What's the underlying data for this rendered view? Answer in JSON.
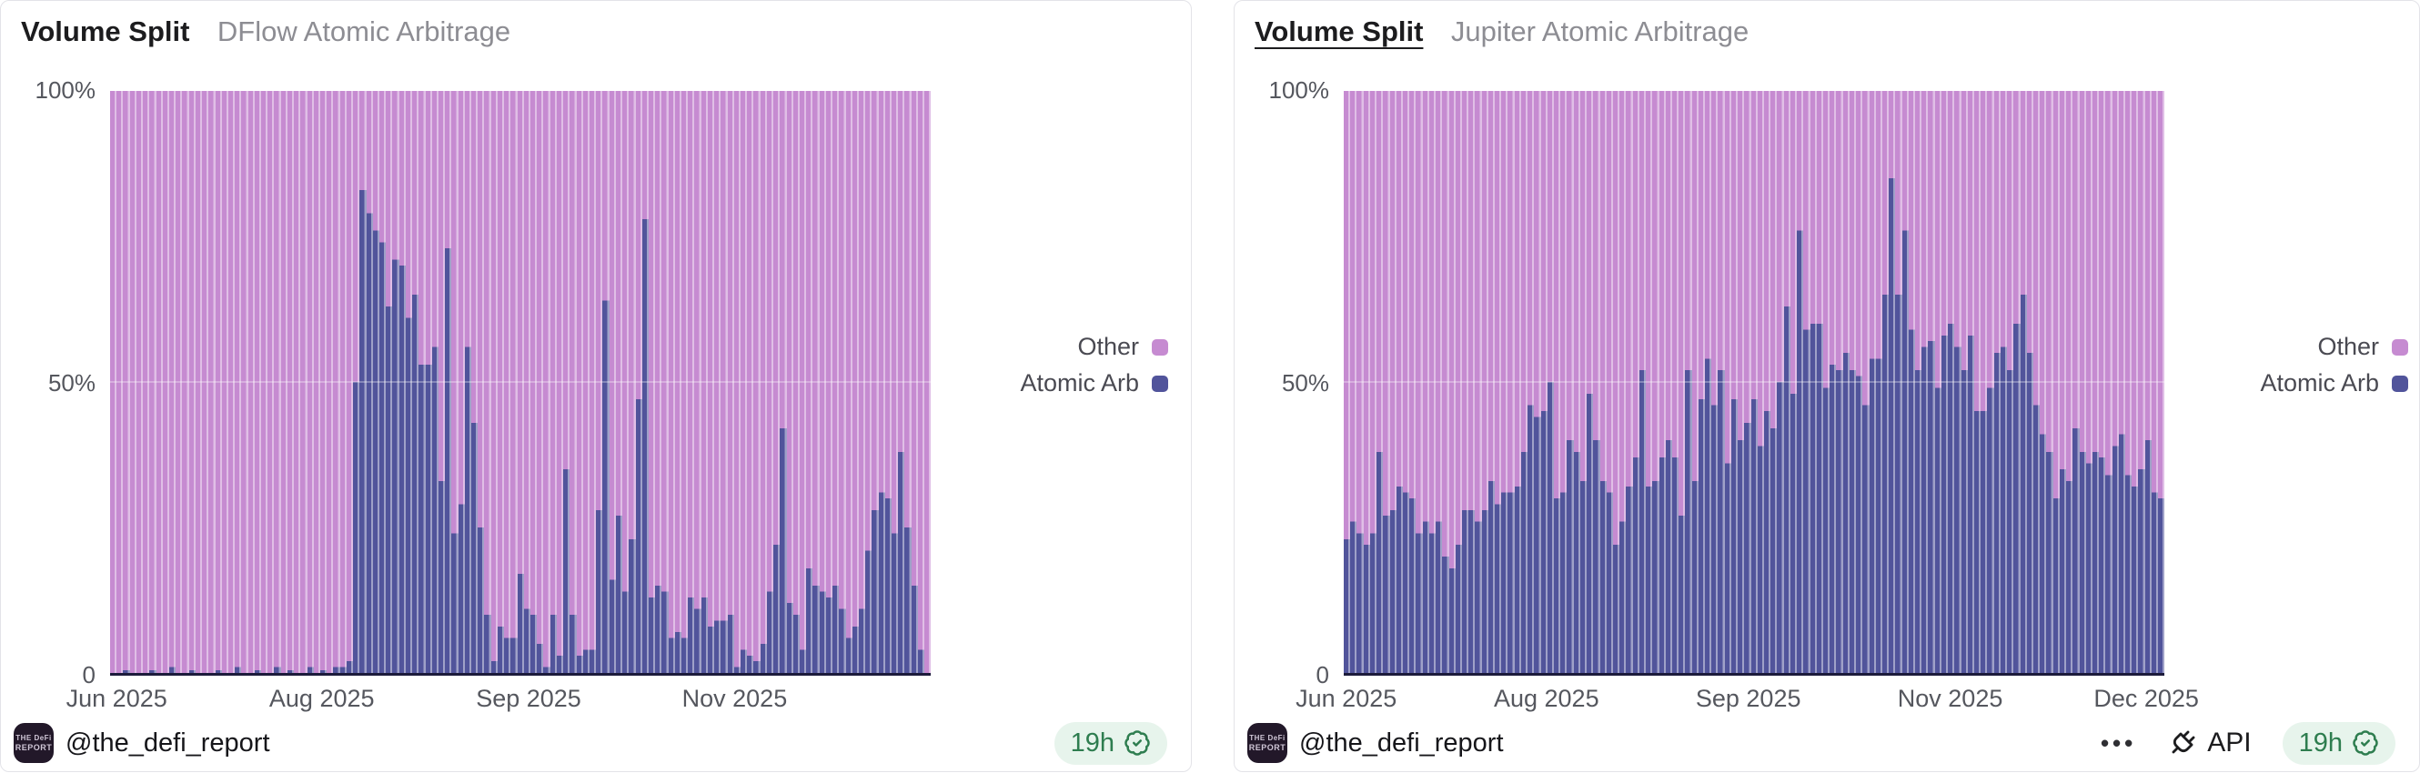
{
  "colors": {
    "other": "#c68bd1",
    "atomic_arb": "#51549b",
    "axis_line": "#1c1b3b",
    "badge_bg": "#e7f4ec",
    "badge_fg": "#2e7d4f",
    "card_border": "#e3e3e8",
    "title_text": "#1c1c1e",
    "subtitle_text": "#8d8d93",
    "axis_label_text": "#55575e"
  },
  "legend": {
    "items": [
      {
        "label": "Other",
        "color_key": "other"
      },
      {
        "label": "Atomic Arb",
        "color_key": "atomic_arb"
      }
    ]
  },
  "footer": {
    "handle": "@the_defi_report",
    "avatar_line1": "THE DeFi",
    "avatar_line2": "REPORT",
    "age_badge": "19h",
    "api_label": "API",
    "menu_dots": "•••"
  },
  "charts": [
    {
      "title": "Volume Split",
      "subtitle": "DFlow Atomic Arbitrage"
    },
    {
      "title": "Volume Split",
      "subtitle": "Jupiter Atomic Arbitrage"
    }
  ],
  "chart_data": [
    {
      "type": "bar",
      "variant": "stacked-percent-column",
      "title": "Volume Split — DFlow Atomic Arbitrage",
      "xlabel": "Date (daily bars, Jun 2025 – Dec 2025)",
      "ylabel": "% of volume",
      "ylim": [
        0,
        100
      ],
      "grid": "50% line only (faint)",
      "legend_position": "right-middle",
      "y_ticks": [
        "0",
        "50%",
        "100%"
      ],
      "x_ticks": [
        {
          "label": "Jun 2025",
          "pos": 0.008
        },
        {
          "label": "Aug 2025",
          "pos": 0.258
        },
        {
          "label": "Sep 2025",
          "pos": 0.51
        },
        {
          "label": "Nov 2025",
          "pos": 0.761
        }
      ],
      "stack_total": 100,
      "series": [
        {
          "name": "Atomic Arb",
          "color": "#51549b",
          "values": [
            0,
            0,
            0.5,
            0,
            0,
            0,
            0.5,
            0,
            0,
            1,
            0,
            0,
            0.5,
            0,
            0,
            0,
            0.5,
            0,
            0,
            1,
            0,
            0,
            0.5,
            0,
            0,
            1,
            0,
            0.5,
            0,
            0,
            1,
            0,
            0.5,
            0,
            1,
            1,
            2,
            50,
            83,
            79,
            76,
            74,
            63,
            71,
            70,
            61,
            65,
            53,
            53,
            56,
            33,
            73,
            24,
            29,
            56,
            43,
            25,
            10,
            2,
            8,
            6,
            6,
            17,
            11,
            10,
            5,
            1,
            10,
            3,
            35,
            10,
            3,
            4,
            4,
            28,
            64,
            16,
            27,
            14,
            23,
            47,
            78,
            13,
            15,
            14,
            6,
            7,
            6,
            13,
            11,
            13,
            8,
            9,
            9,
            10,
            1,
            4,
            3,
            2,
            5,
            14,
            22,
            42,
            12,
            10,
            4,
            18,
            15,
            14,
            13,
            15,
            11,
            6,
            8,
            11,
            21,
            28,
            31,
            30,
            24,
            38,
            25,
            15,
            4,
            0
          ]
        },
        {
          "name": "Other",
          "color": "#c68bd1",
          "values": "complement — each bar is 100 minus the Atomic Arb value"
        }
      ]
    },
    {
      "type": "bar",
      "variant": "stacked-percent-column",
      "title": "Volume Split — Jupiter Atomic Arbitrage",
      "xlabel": "Date (daily bars, Jun 2025 – Dec 2025)",
      "ylabel": "% of volume",
      "ylim": [
        0,
        100
      ],
      "grid": "50% line only (faint)",
      "legend_position": "right-middle",
      "y_ticks": [
        "0",
        "50%",
        "100%"
      ],
      "x_ticks": [
        {
          "label": "Jun 2025",
          "pos": 0.003
        },
        {
          "label": "Aug 2025",
          "pos": 0.247
        },
        {
          "label": "Sep 2025",
          "pos": 0.493
        },
        {
          "label": "Nov 2025",
          "pos": 0.739
        },
        {
          "label": "Dec 2025",
          "pos": 0.978
        }
      ],
      "stack_total": 100,
      "series": [
        {
          "name": "Atomic Arb",
          "color": "#51549b",
          "values": [
            23,
            26,
            24,
            22,
            24,
            38,
            27,
            28,
            32,
            31,
            30,
            24,
            26,
            24,
            26,
            20,
            18,
            22,
            28,
            28,
            26,
            28,
            33,
            29,
            31,
            31,
            32,
            38,
            46,
            44,
            45,
            50,
            30,
            31,
            40,
            38,
            33,
            48,
            40,
            33,
            31,
            22,
            26,
            32,
            37,
            52,
            32,
            33,
            37,
            40,
            37,
            27,
            52,
            33,
            47,
            54,
            46,
            52,
            36,
            47,
            40,
            43,
            47,
            39,
            45,
            42,
            50,
            63,
            48,
            76,
            59,
            60,
            60,
            49,
            53,
            52,
            55,
            52,
            51,
            46,
            54,
            54,
            65,
            85,
            65,
            76,
            59,
            52,
            56,
            57,
            49,
            58,
            60,
            56,
            52,
            58,
            45,
            45,
            49,
            55,
            56,
            52,
            60,
            65,
            55,
            46,
            41,
            38,
            30,
            35,
            33,
            42,
            38,
            36,
            38,
            37,
            34,
            39,
            41,
            34,
            32,
            35,
            40,
            31,
            30
          ]
        },
        {
          "name": "Other",
          "color": "#c68bd1",
          "values": "complement — each bar is 100 minus the Atomic Arb value"
        }
      ]
    }
  ]
}
